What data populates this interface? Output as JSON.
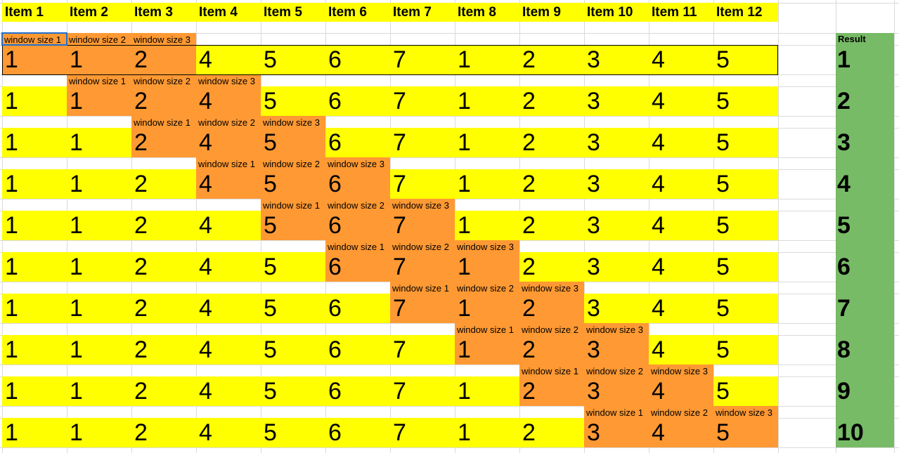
{
  "colors": {
    "yellow": "#ffff00",
    "orange": "#ff9933",
    "green": "#77bb66",
    "grid": "#dadada"
  },
  "headers": [
    "Item 1",
    "Item 2",
    "Item 3",
    "Item 4",
    "Item 5",
    "Item 6",
    "Item 7",
    "Item 8",
    "Item 9",
    "Item 10",
    "Item 11",
    "Item 12"
  ],
  "window_labels": [
    "window size 1",
    "window size 2",
    "window size 3"
  ],
  "values": [
    "1",
    "1",
    "2",
    "4",
    "5",
    "6",
    "7",
    "1",
    "2",
    "3",
    "4",
    "5"
  ],
  "result_label": "Result",
  "results": [
    "1",
    "2",
    "3",
    "4",
    "5",
    "6",
    "7",
    "8",
    "9",
    "10"
  ]
}
